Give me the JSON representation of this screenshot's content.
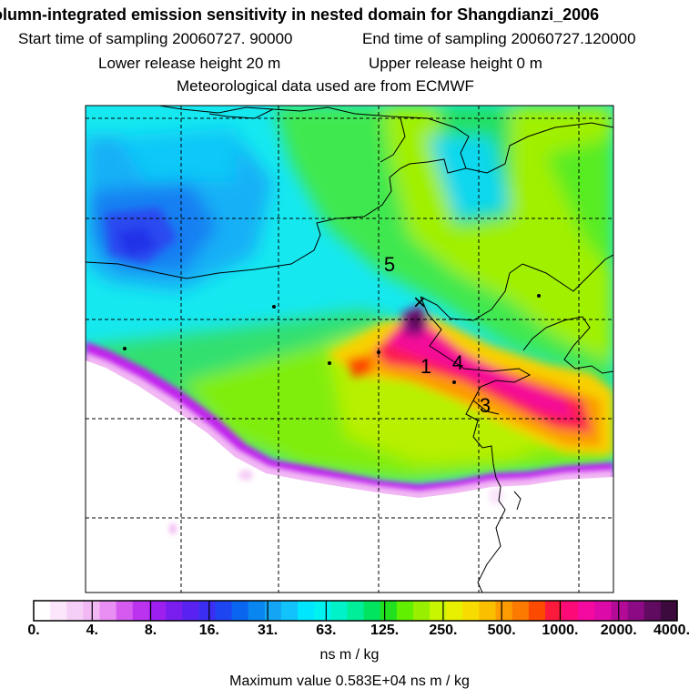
{
  "header": {
    "title": "olumn-integrated emission sensitivity in nested domain for Shangdianzi_2006",
    "start_label": "Start time of sampling 20060727. 90000",
    "end_label": "End time of sampling 20060727.120000",
    "lower_label": "Lower release height   20 m",
    "upper_label": "Upper release height    0 m",
    "met_label": "Meteorological data used are from ECMWF"
  },
  "map": {
    "station_marker": "×",
    "trajectory_labels": [
      "5",
      "1",
      "4",
      "3"
    ]
  },
  "colorbar": {
    "tick_labels": [
      "0.",
      "4.",
      "8.",
      "16.",
      "31.",
      "63.",
      "125.",
      "250.",
      "500.",
      "1000.",
      "2000.",
      "4000."
    ],
    "colors": [
      "#ffffff",
      "#fbe6fb",
      "#f6cff6",
      "#f2b8f4",
      "#e98ef2",
      "#d45af0",
      "#bb33ee",
      "#9d1ff0",
      "#7a1ef0",
      "#5a22f0",
      "#3b2ef2",
      "#1e45f2",
      "#0a66f0",
      "#0a86f0",
      "#14a6f4",
      "#12c2fa",
      "#00e6ff",
      "#00f2f0",
      "#00f2c8",
      "#00ee9a",
      "#00e460",
      "#20e020",
      "#60f000",
      "#98f000",
      "#c8f600",
      "#e8f000",
      "#f6dc00",
      "#fac000",
      "#fc9c00",
      "#fc7a00",
      "#fc4a00",
      "#fc1a3c",
      "#fc0a78",
      "#f40aa0",
      "#dc0aa8",
      "#b40a98",
      "#8c0a84",
      "#600a60",
      "#3c0a3c"
    ]
  },
  "footer": {
    "units": "ns m / kg",
    "max_value": "Maximum value  0.583E+04 ns m / kg"
  }
}
